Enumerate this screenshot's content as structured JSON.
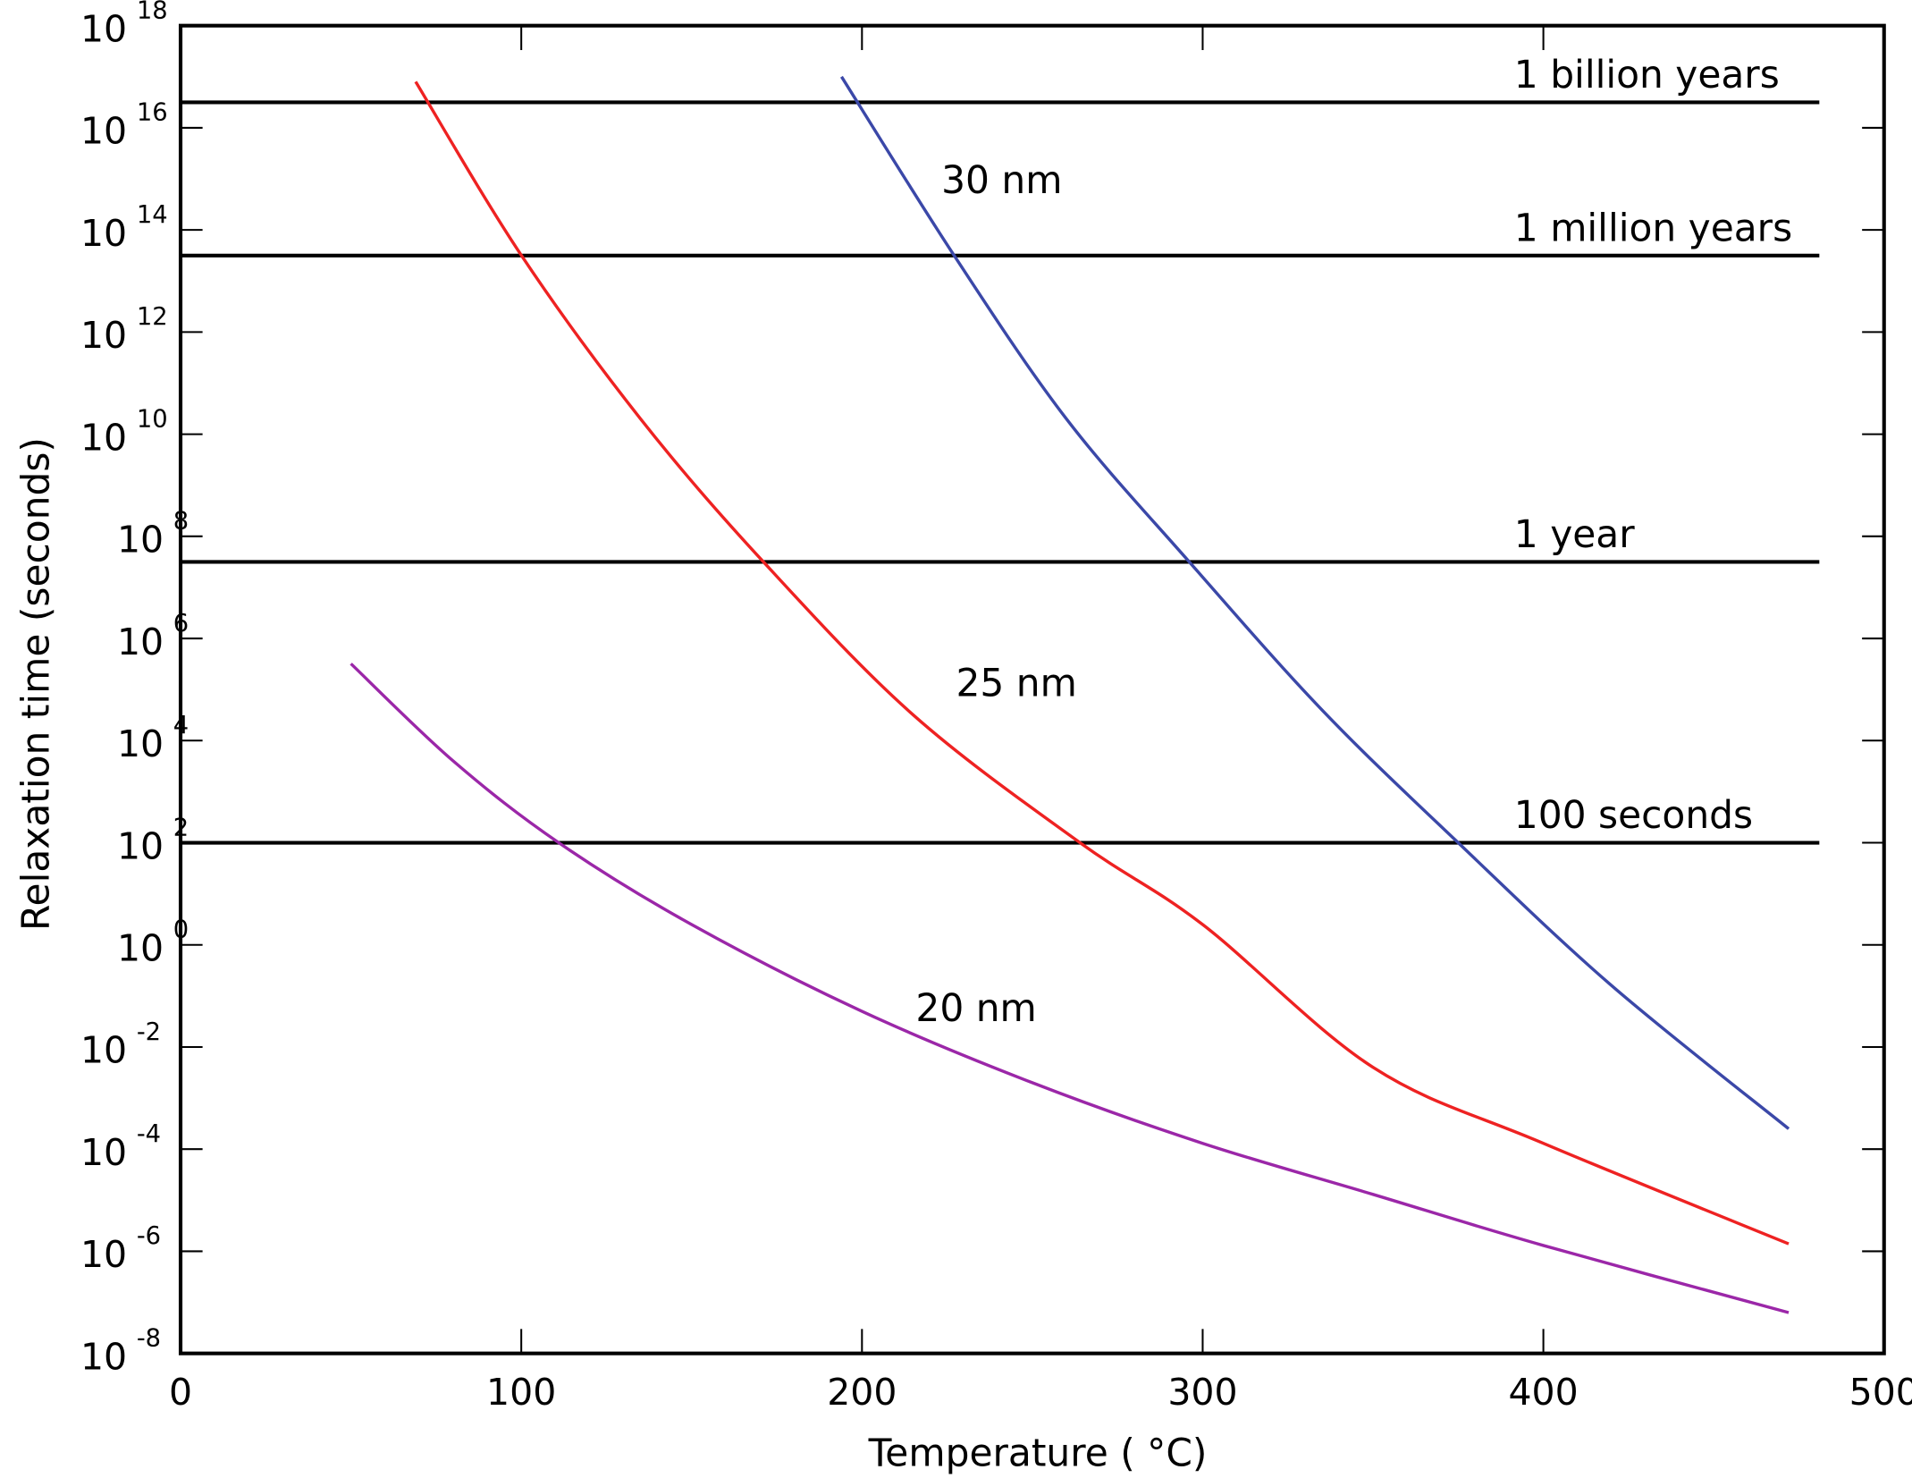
{
  "chart_data": {
    "type": "line",
    "title": "",
    "xlabel": "Temperature (   °C)",
    "ylabel": "Relaxation time (seconds)",
    "xlim": [
      0,
      500
    ],
    "ylim": [
      1e-08,
      1e+18
    ],
    "yscale": "log",
    "grid": false,
    "legend": "none",
    "x_ticks": [
      "0",
      "100",
      "200",
      "300",
      "400",
      "500"
    ],
    "y_tick_exponents": [
      "18",
      "16",
      "14",
      "12",
      "10",
      "8",
      "6",
      "4",
      "2",
      "0",
      "-2",
      "-4",
      "-6",
      "-8"
    ],
    "y_tick_base": "10",
    "series": [
      {
        "name": "30 nm",
        "color": "#3b48a8",
        "points": [
          [
            194,
            1e+17
          ],
          [
            227,
            32000000000000.0
          ],
          [
            260,
            20000000000.0
          ],
          [
            296,
            32000000.0
          ],
          [
            335,
            40000.0
          ],
          [
            375,
            100.0
          ],
          [
            420,
            0.16
          ],
          [
            472,
            0.00025
          ]
        ]
      },
      {
        "name": "25 nm",
        "color": "#ee2222",
        "points": [
          [
            69,
            8e+16
          ],
          [
            100,
            32000000000000.0
          ],
          [
            135,
            20000000000.0
          ],
          [
            171,
            32000000.0
          ],
          [
            215,
            32000.0
          ],
          [
            264,
            100.0
          ],
          [
            300,
            2.5
          ],
          [
            350,
            0.004
          ],
          [
            400,
            0.00013
          ],
          [
            472,
            1.4e-06
          ]
        ]
      },
      {
        "name": "20 nm",
        "color": "#9b27a8",
        "points": [
          [
            50,
            320000.0
          ],
          [
            80,
            4000.0
          ],
          [
            111,
            100.0
          ],
          [
            150,
            2.5
          ],
          [
            200,
            0.05
          ],
          [
            250,
            0.002
          ],
          [
            300,
            0.00013
          ],
          [
            350,
            1.3e-05
          ],
          [
            400,
            1.3e-06
          ],
          [
            472,
            6.3e-08
          ]
        ]
      }
    ],
    "reference_lines": [
      {
        "label": "1 billion years",
        "value": 3.15e+16
      },
      {
        "label": "1 million years",
        "value": 31500000000000.0
      },
      {
        "label": "1 year",
        "value": 31500000.0
      },
      {
        "label": "100 seconds",
        "value": 100
      }
    ],
    "reference_xmax": 481
  }
}
